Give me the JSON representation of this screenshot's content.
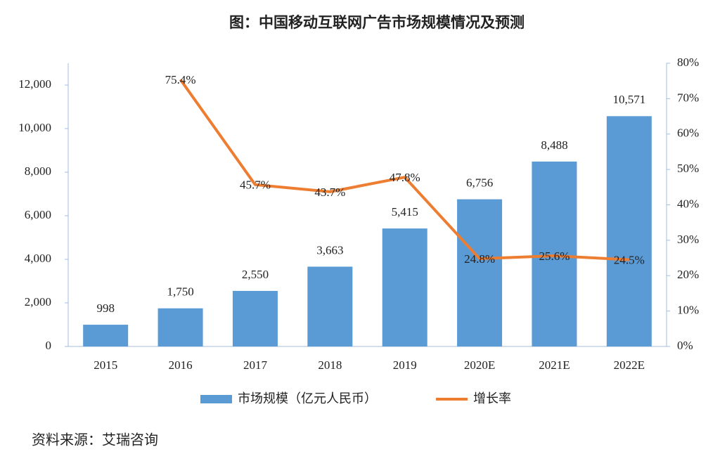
{
  "chart_data": {
    "type": "bar",
    "title": "图：中国移动互联网广告市场规模情况及预测",
    "categories": [
      "2015",
      "2016",
      "2017",
      "2018",
      "2019",
      "2020E",
      "2021E",
      "2022E"
    ],
    "series": [
      {
        "name": "市场规模（亿元人民币）",
        "type": "bar",
        "color": "#5b9bd5",
        "values": [
          998,
          1750,
          2550,
          3663,
          5415,
          6756,
          8488,
          10571
        ],
        "value_labels": [
          "998",
          "1,750",
          "2,550",
          "3,663",
          "5,415",
          "6,756",
          "8,488",
          "10,571"
        ]
      },
      {
        "name": "增长率",
        "type": "line",
        "axis": "y2",
        "color": "#ed7d31",
        "values": [
          null,
          75.4,
          45.7,
          43.7,
          47.8,
          24.8,
          25.6,
          24.5
        ],
        "value_labels": [
          null,
          "75.4%",
          "45.7%",
          "43.7%",
          "47.8%",
          "24.8%",
          "25.6%",
          "24.5%"
        ]
      }
    ],
    "ylim": [
      0,
      13000
    ],
    "yticks": [
      0,
      {
        "value": 2000,
        "label": "2,000"
      },
      {
        "value": 4000,
        "label": "4,000"
      },
      {
        "value": 6000,
        "label": "6,000"
      },
      {
        "value": 8000,
        "label": "8,000"
      },
      {
        "value": 10000,
        "label": "10,000"
      },
      {
        "value": 12000,
        "label": "12,000"
      }
    ],
    "y2lim": [
      0,
      80
    ],
    "y2ticks": [
      {
        "value": 0,
        "label": "0%"
      },
      {
        "value": 10,
        "label": "10%"
      },
      {
        "value": 20,
        "label": "20%"
      },
      {
        "value": 30,
        "label": "30%"
      },
      {
        "value": 40,
        "label": "40%"
      },
      {
        "value": 50,
        "label": "50%"
      },
      {
        "value": 60,
        "label": "60%"
      },
      {
        "value": 70,
        "label": "70%"
      },
      {
        "value": 80,
        "label": "80%"
      }
    ],
    "legend": "bottom",
    "source": "资料来源：艾瑞咨询"
  }
}
